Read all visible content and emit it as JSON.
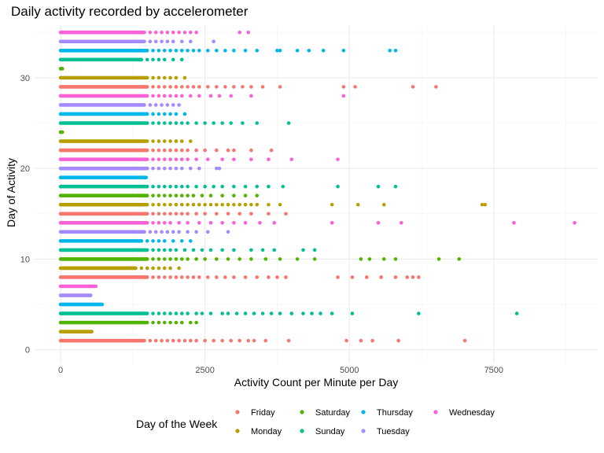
{
  "chart_data": {
    "type": "scatter",
    "title": "Daily activity recorded by accelerometer",
    "xlabel": "Activity Count per Minute per Day",
    "ylabel": "Day of Activity",
    "xlim": [
      -450,
      9300
    ],
    "ylim": [
      -1.5,
      35.8
    ],
    "x_ticks": [
      0,
      2500,
      5000,
      7500
    ],
    "x_tick_labels": [
      "0",
      "2500",
      "5000",
      "7500"
    ],
    "y_ticks": [
      0,
      10,
      20,
      30
    ],
    "y_tick_labels": [
      "0",
      "10",
      "20",
      "30"
    ],
    "grid": true,
    "legend": {
      "title": "Day of the Week",
      "position": "bottom",
      "entries": [
        {
          "name": "Friday",
          "color": "#F8766D"
        },
        {
          "name": "Monday",
          "color": "#B79F00"
        },
        {
          "name": "Saturday",
          "color": "#53B400"
        },
        {
          "name": "Sunday",
          "color": "#00C094"
        },
        {
          "name": "Thursday",
          "color": "#00B6EB"
        },
        {
          "name": "Tuesday",
          "color": "#A58AFF"
        },
        {
          "name": "Wednesday",
          "color": "#FB61D7"
        }
      ]
    },
    "series": [
      {
        "day": 1,
        "weekday": "Friday",
        "dense_max": 1450,
        "sparse": [
          1550,
          1650,
          1750,
          1850,
          1950,
          2050,
          2150,
          2250,
          2350,
          2500,
          2650,
          2800,
          2950,
          3100,
          3250,
          3350,
          3550,
          3950,
          4950,
          5200,
          5400,
          5850,
          7000
        ]
      },
      {
        "day": 2,
        "weekday": "Monday",
        "dense_max": 540,
        "sparse": []
      },
      {
        "day": 3,
        "weekday": "Saturday",
        "dense_max": 1500,
        "sparse": [
          1600,
          1700,
          1800,
          1900,
          2000,
          2100,
          2250,
          2350
        ]
      },
      {
        "day": 4,
        "weekday": "Sunday",
        "dense_max": 1500,
        "sparse": [
          1600,
          1700,
          1800,
          1900,
          2000,
          2100,
          2200,
          2350,
          2450,
          2600,
          2800,
          2900,
          3050,
          3200,
          3350,
          3500,
          3650,
          3800,
          4000,
          4200,
          4350,
          4500,
          4700,
          5050,
          6200,
          7900
        ]
      },
      {
        "day": 5,
        "weekday": "Thursday",
        "dense_max": 720,
        "sparse": []
      },
      {
        "day": 6,
        "weekday": "Tuesday",
        "dense_max": 520,
        "sparse": []
      },
      {
        "day": 7,
        "weekday": "Wednesday",
        "dense_max": 610,
        "sparse": []
      },
      {
        "day": 8,
        "weekday": "Friday",
        "dense_max": 1500,
        "sparse": [
          1600,
          1700,
          1800,
          1900,
          2000,
          2100,
          2200,
          2300,
          2400,
          2550,
          2700,
          2850,
          3000,
          3200,
          3400,
          3600,
          3750,
          3900,
          4800,
          5050,
          5300,
          5550,
          5800,
          6000,
          6100,
          6200
        ]
      },
      {
        "day": 9,
        "weekday": "Monday",
        "dense_max": 1300,
        "sparse": [
          1400,
          1500,
          1600,
          1700,
          1800,
          1900,
          2050
        ]
      },
      {
        "day": 10,
        "weekday": "Saturday",
        "dense_max": 1500,
        "sparse": [
          1600,
          1700,
          1800,
          1900,
          2000,
          2100,
          2200,
          2350,
          2500,
          2700,
          2900,
          3100,
          3300,
          3550,
          3800,
          4100,
          4400,
          5200,
          5350,
          5600,
          5800,
          6550,
          6900
        ]
      },
      {
        "day": 11,
        "weekday": "Sunday",
        "dense_max": 1500,
        "sparse": [
          1600,
          1700,
          1800,
          1900,
          2000,
          2150,
          2300,
          2450,
          2600,
          2800,
          3000,
          3300,
          3500,
          3700,
          4200,
          4400
        ]
      },
      {
        "day": 12,
        "weekday": "Thursday",
        "dense_max": 1400,
        "sparse": [
          1500,
          1600,
          1700,
          1800,
          1950,
          2100,
          2250
        ]
      },
      {
        "day": 13,
        "weekday": "Tuesday",
        "dense_max": 1450,
        "sparse": [
          1550,
          1650,
          1750,
          1850,
          1950,
          2050,
          2200,
          2350,
          2550,
          2900
        ]
      },
      {
        "day": 14,
        "weekday": "Wednesday",
        "dense_max": 1500,
        "sparse": [
          1600,
          1700,
          1800,
          1900,
          2050,
          2200,
          2400,
          2600,
          2800,
          3000,
          3200,
          3450,
          3700,
          4700,
          5500,
          5900,
          7850,
          8900
        ]
      },
      {
        "day": 15,
        "weekday": "Friday",
        "dense_max": 1500,
        "sparse": [
          1600,
          1700,
          1800,
          1900,
          2000,
          2100,
          2200,
          2350,
          2500,
          2700,
          2900,
          3100,
          3300,
          3600,
          3900
        ]
      },
      {
        "day": 16,
        "weekday": "Monday",
        "dense_max": 1500,
        "sparse": [
          1600,
          1700,
          1800,
          1900,
          2000,
          2100,
          2200,
          2300,
          2400,
          2500,
          2600,
          2700,
          2800,
          2900,
          3000,
          3100,
          3200,
          3300,
          3400,
          3600,
          3800,
          4700,
          5150,
          5600,
          7300,
          7350
        ]
      },
      {
        "day": 17,
        "weekday": "Saturday",
        "dense_max": 1500,
        "sparse": [
          1600,
          1700,
          1800,
          1900,
          2000,
          2100,
          2200,
          2300,
          2450,
          2600,
          2800,
          3000,
          3200,
          3400
        ]
      },
      {
        "day": 18,
        "weekday": "Sunday",
        "dense_max": 1500,
        "sparse": [
          1600,
          1700,
          1800,
          1900,
          2000,
          2100,
          2200,
          2350,
          2500,
          2650,
          2800,
          3000,
          3200,
          3400,
          3600,
          3850,
          4800,
          5500,
          5800
        ]
      },
      {
        "day": 19,
        "weekday": "Thursday",
        "dense_max": 1480,
        "sparse": []
      },
      {
        "day": 20,
        "weekday": "Tuesday",
        "dense_max": 1500,
        "sparse": [
          1600,
          1700,
          1800,
          1900,
          2000,
          2100,
          2250,
          2400,
          2700,
          2750
        ]
      },
      {
        "day": 21,
        "weekday": "Wednesday",
        "dense_max": 1500,
        "sparse": [
          1600,
          1700,
          1800,
          1900,
          2000,
          2100,
          2200,
          2350,
          2550,
          2800,
          3000,
          3300,
          3600,
          4000,
          4800
        ]
      },
      {
        "day": 22,
        "weekday": "Friday",
        "dense_max": 1500,
        "sparse": [
          1600,
          1700,
          1800,
          1900,
          2000,
          2100,
          2200,
          2350,
          2500,
          2700,
          2900,
          3000,
          3300,
          3650
        ]
      },
      {
        "day": 23,
        "weekday": "Monday",
        "dense_max": 1500,
        "sparse": [
          1600,
          1700,
          1800,
          1900,
          2000,
          2100,
          2250
        ]
      },
      {
        "day": 24,
        "weekday": "Saturday",
        "dense_max": 30,
        "sparse": []
      },
      {
        "day": 25,
        "weekday": "Sunday",
        "dense_max": 1500,
        "sparse": [
          1600,
          1700,
          1800,
          1900,
          2000,
          2100,
          2200,
          2350,
          2500,
          2650,
          2800,
          2950,
          3150,
          3400,
          3950
        ]
      },
      {
        "day": 26,
        "weekday": "Thursday",
        "dense_max": 1500,
        "sparse": [
          1600,
          1700,
          1800,
          1900,
          2000,
          2150
        ]
      },
      {
        "day": 27,
        "weekday": "Tuesday",
        "dense_max": 1450,
        "sparse": [
          1550,
          1650,
          1750,
          1850,
          1950,
          2050
        ]
      },
      {
        "day": 28,
        "weekday": "Wednesday",
        "dense_max": 1500,
        "sparse": [
          1600,
          1700,
          1800,
          1900,
          2000,
          2100,
          2250,
          2400,
          2600,
          2750,
          2950,
          3300,
          4900
        ]
      },
      {
        "day": 29,
        "weekday": "Friday",
        "dense_max": 1500,
        "sparse": [
          1600,
          1700,
          1800,
          1900,
          2000,
          2100,
          2200,
          2300,
          2400,
          2550,
          2700,
          2850,
          3000,
          3150,
          3300,
          3500,
          3800,
          4900,
          5100,
          6100,
          6500
        ]
      },
      {
        "day": 30,
        "weekday": "Monday",
        "dense_max": 1500,
        "sparse": [
          1600,
          1700,
          1800,
          1900,
          2000,
          2150
        ]
      },
      {
        "day": 31,
        "weekday": "Saturday",
        "dense_max": 30,
        "sparse": []
      },
      {
        "day": 32,
        "weekday": "Sunday",
        "dense_max": 1400,
        "sparse": [
          1500,
          1600,
          1700,
          1800,
          1950,
          2100
        ]
      },
      {
        "day": 33,
        "weekday": "Thursday",
        "dense_max": 1500,
        "sparse": [
          1600,
          1700,
          1800,
          1900,
          2000,
          2100,
          2200,
          2300,
          2400,
          2550,
          2700,
          2850,
          3000,
          3200,
          3400,
          3750,
          3800,
          4100,
          4300,
          4550,
          4900,
          5700,
          5800
        ]
      },
      {
        "day": 34,
        "weekday": "Tuesday",
        "dense_max": 1450,
        "sparse": [
          1550,
          1650,
          1750,
          1850,
          1950,
          2100,
          2250,
          2650
        ]
      },
      {
        "day": 35,
        "weekday": "Wednesday",
        "dense_max": 1450,
        "sparse": [
          1550,
          1650,
          1750,
          1850,
          1950,
          2050,
          2150,
          2250,
          2350,
          3100,
          3250
        ]
      }
    ]
  }
}
